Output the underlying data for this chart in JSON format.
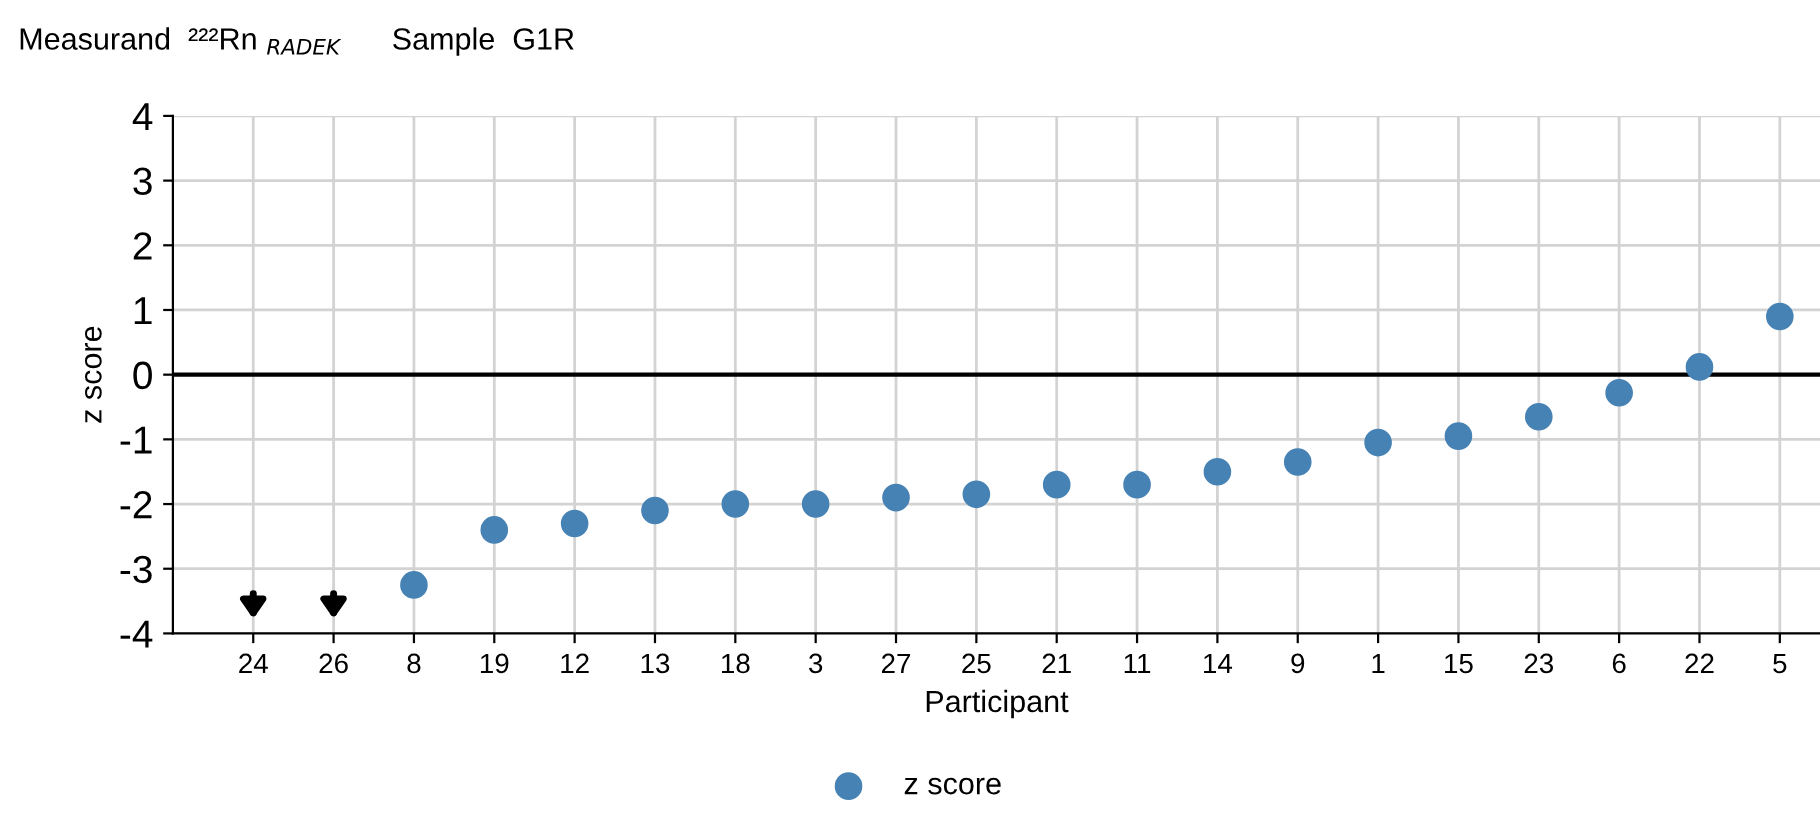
{
  "chart_data": {
    "type": "scatter",
    "title": "Measurand  ²²²Rn $_{RADEK}$      Sample  G1R",
    "xlabel": "Participant",
    "ylabel": "z score",
    "categories": [
      "24",
      "26",
      "8",
      "19",
      "12",
      "13",
      "18",
      "3",
      "27",
      "25",
      "21",
      "11",
      "14",
      "9",
      "1",
      "15",
      "23",
      "6",
      "22",
      "5"
    ],
    "series": [
      {
        "name": "z score",
        "color": "#4682b4",
        "values": [
          null,
          null,
          -3.25,
          -2.4,
          -2.3,
          -2.1,
          -2.0,
          -2.0,
          -1.9,
          -1.85,
          -1.7,
          -1.7,
          -1.5,
          -1.35,
          -1.05,
          -0.95,
          -0.65,
          -0.28,
          0.12,
          0.9
        ]
      }
    ],
    "ylim": [
      -4,
      4
    ],
    "yticks": [
      -4,
      -3,
      -2,
      -1,
      0,
      1,
      2,
      3,
      4
    ],
    "ref_lines": [
      {
        "axis": "y",
        "value": 0,
        "color": "#000000"
      }
    ],
    "grid": true,
    "legend": "bottom",
    "marker": "circle"
  }
}
